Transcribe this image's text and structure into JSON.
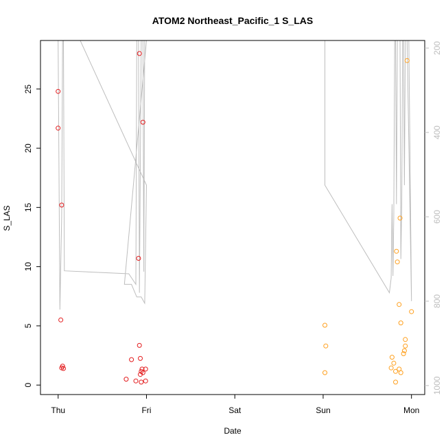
{
  "chart_data": {
    "type": "scatter",
    "title": "ATOM2 Northeast_Pacific_1 S_LAS",
    "xlabel": "Date",
    "ylabel": "S_LAS",
    "x_unit": "days",
    "xlim": [
      -0.2,
      4.15
    ],
    "ylim": [
      -0.8,
      29.1
    ],
    "x_ticks": [
      {
        "value": 0,
        "label": "Thu"
      },
      {
        "value": 1,
        "label": "Fri"
      },
      {
        "value": 2,
        "label": "Sat"
      },
      {
        "value": 3,
        "label": "Sun"
      },
      {
        "value": 4,
        "label": "Mon"
      }
    ],
    "y_ticks": [
      0,
      5,
      10,
      15,
      20,
      25
    ],
    "y2_ticks": [
      200,
      400,
      600,
      800,
      1000
    ],
    "y2lim": [
      1021.3,
      182.0
    ],
    "grid": false,
    "legend": "none",
    "colors": {
      "series_red": "#e31a1c",
      "series_orange": "#ff9f1c",
      "depth_line": "#bdbdbd",
      "axis": "#000000",
      "right_axis": "#bdbdbd"
    },
    "series": [
      {
        "color": "red",
        "points": [
          [
            0.0,
            24.8
          ],
          [
            0.0,
            21.7
          ],
          [
            0.04,
            15.2
          ],
          [
            0.03,
            5.5
          ],
          [
            0.05,
            1.6
          ],
          [
            0.04,
            1.45
          ],
          [
            0.06,
            1.4
          ],
          [
            0.92,
            28.0
          ],
          [
            0.96,
            22.2
          ],
          [
            0.91,
            10.7
          ],
          [
            0.92,
            3.35
          ],
          [
            0.83,
            2.15
          ],
          [
            0.93,
            2.25
          ],
          [
            0.95,
            1.35
          ],
          [
            0.99,
            1.35
          ],
          [
            0.94,
            1.15
          ],
          [
            0.96,
            1.05
          ],
          [
            0.93,
            0.9
          ],
          [
            0.77,
            0.5
          ],
          [
            0.88,
            0.35
          ],
          [
            0.99,
            0.35
          ],
          [
            0.94,
            0.25
          ]
        ]
      },
      {
        "color": "orange",
        "points": [
          [
            3.95,
            27.4
          ],
          [
            3.87,
            14.1
          ],
          [
            3.83,
            11.3
          ],
          [
            3.84,
            10.4
          ],
          [
            3.86,
            6.8
          ],
          [
            4.0,
            6.2
          ],
          [
            3.88,
            5.25
          ],
          [
            3.02,
            5.05
          ],
          [
            3.03,
            3.3
          ],
          [
            3.02,
            1.05
          ],
          [
            3.93,
            3.85
          ],
          [
            3.93,
            3.3
          ],
          [
            3.92,
            2.9
          ],
          [
            3.91,
            2.65
          ],
          [
            3.78,
            2.35
          ],
          [
            3.8,
            1.85
          ],
          [
            3.77,
            1.45
          ],
          [
            3.86,
            1.35
          ],
          [
            3.82,
            1.15
          ],
          [
            3.88,
            1.05
          ],
          [
            3.82,
            0.25
          ]
        ]
      }
    ],
    "depth_line": [
      [
        0.0,
        182
      ],
      [
        0.02,
        820
      ],
      [
        0.04,
        600
      ],
      [
        0.05,
        182
      ],
      [
        0.06,
        182
      ],
      [
        0.07,
        728
      ],
      [
        0.8,
        735
      ],
      [
        0.88,
        760
      ],
      [
        0.89,
        182
      ],
      [
        0.91,
        182
      ],
      [
        0.92,
        780
      ],
      [
        0.94,
        182
      ],
      [
        0.96,
        182
      ],
      [
        0.97,
        730
      ],
      [
        0.98,
        182
      ],
      [
        1.0,
        182
      ],
      [
        0.75,
        760
      ],
      [
        0.83,
        760
      ],
      [
        0.89,
        790
      ],
      [
        0.94,
        790
      ],
      [
        0.98,
        805
      ],
      [
        1.0,
        525
      ],
      [
        0.25,
        182
      ],
      [
        3.02,
        182
      ],
      [
        3.02,
        525
      ],
      [
        3.75,
        780
      ],
      [
        3.77,
        745
      ],
      [
        3.78,
        570
      ],
      [
        3.79,
        740
      ],
      [
        3.8,
        600
      ],
      [
        3.81,
        182
      ],
      [
        3.82,
        182
      ],
      [
        3.83,
        570
      ],
      [
        3.84,
        182
      ],
      [
        3.85,
        182
      ],
      [
        3.87,
        182
      ],
      [
        3.88,
        700
      ],
      [
        3.89,
        570
      ],
      [
        3.9,
        182
      ],
      [
        3.91,
        182
      ],
      [
        3.92,
        525
      ],
      [
        3.93,
        182
      ],
      [
        3.95,
        182
      ],
      [
        4.0,
        800
      ],
      [
        3.97,
        182
      ]
    ]
  }
}
